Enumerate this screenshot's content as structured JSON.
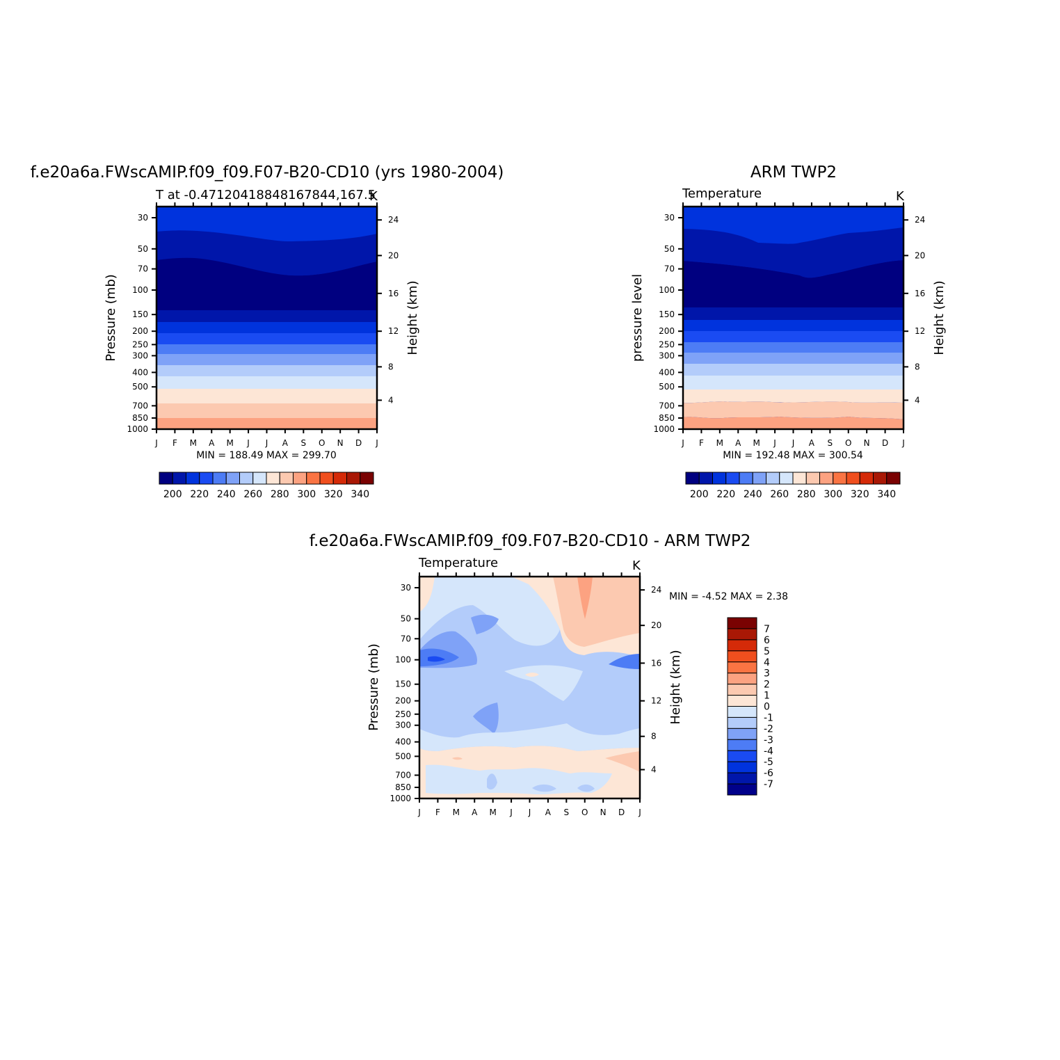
{
  "colors": {
    "temp_scale": [
      "#000080",
      "#0016aa",
      "#0033dd",
      "#1a4bf2",
      "#4d7cf5",
      "#7fa2f7",
      "#b3ccfa",
      "#d5e6fb",
      "#fde6d6",
      "#fcc9b0",
      "#fca281",
      "#fa7443",
      "#f04f1e",
      "#d52a08",
      "#a91805",
      "#7a0202"
    ],
    "diff_scale": [
      "#00008a",
      "#0016aa",
      "#0033dd",
      "#1a4bf2",
      "#4d7cf5",
      "#7fa2f7",
      "#b3ccfa",
      "#d5e6fb",
      "#fde6d6",
      "#fcc9b0",
      "#fca281",
      "#fa7443",
      "#f04f1e",
      "#d52a08",
      "#a91805",
      "#7a0202"
    ]
  },
  "panels": [
    {
      "id": "model",
      "title": "f.e20a6a.FWscAMIP.f09_f09.F07-B20-CD10 (yrs 1980-2004)",
      "subtitle_left": "T at -0.47120418848167844,167.5",
      "subtitle_right": "K",
      "ylabel_left": "Pressure (mb)",
      "ylabel_right": "Height (km)",
      "minmax": "MIN =  188.49 MAX =  299.70",
      "colorbar_labels": [
        "200",
        "220",
        "240",
        "260",
        "280",
        "300",
        "320",
        "340"
      ]
    },
    {
      "id": "obs",
      "title": "ARM TWP2",
      "subtitle_left": "Temperature",
      "subtitle_right": "K",
      "ylabel_left": "pressure level",
      "ylabel_right": "Height (km)",
      "minmax": "MIN =  192.48 MAX =  300.54",
      "colorbar_labels": [
        "200",
        "220",
        "240",
        "260",
        "280",
        "300",
        "320",
        "340"
      ]
    },
    {
      "id": "diff",
      "title": "f.e20a6a.FWscAMIP.f09_f09.F07-B20-CD10 - ARM TWP2",
      "subtitle_left": "Temperature",
      "subtitle_right": "K",
      "ylabel_left": "Pressure (mb)",
      "ylabel_right": "Height (km)",
      "minmax": "MIN =   -4.52 MAX =    2.38",
      "colorbar_labels": [
        "7",
        "6",
        "5",
        "4",
        "3",
        "2",
        "1",
        "0",
        "-1",
        "-2",
        "-3",
        "-4",
        "-5",
        "-6",
        "-7"
      ]
    }
  ],
  "chart_data": [
    {
      "type": "heatmap",
      "title": "f.e20a6a.FWscAMIP.f09_f09.F07-B20-CD10 (yrs 1980-2004)",
      "xlabel": "",
      "ylabel": "Pressure (mb)",
      "x_ticks": [
        "J",
        "F",
        "M",
        "A",
        "M",
        "J",
        "J",
        "A",
        "S",
        "O",
        "N",
        "D",
        "J"
      ],
      "y_ticks_left": [
        "30",
        "50",
        "70",
        "100",
        "150",
        "200",
        "250",
        "300",
        "400",
        "500",
        "700",
        "850",
        "1000"
      ],
      "y_ticks_right": [
        "24",
        "20",
        "16",
        "12",
        "8",
        "4"
      ],
      "contour_levels": [
        195,
        200,
        205,
        210,
        215,
        220,
        225,
        230,
        235,
        240,
        245,
        250,
        255,
        260,
        265,
        270,
        275,
        280,
        285,
        290,
        295,
        300
      ],
      "min": 188.49,
      "max": 299.7
    },
    {
      "type": "heatmap",
      "title": "ARM TWP2",
      "xlabel": "",
      "ylabel": "pressure level",
      "x_ticks": [
        "J",
        "F",
        "M",
        "A",
        "M",
        "J",
        "J",
        "A",
        "S",
        "O",
        "N",
        "D",
        "J"
      ],
      "y_ticks_left": [
        "30",
        "50",
        "70",
        "100",
        "150",
        "200",
        "250",
        "300",
        "400",
        "500",
        "700",
        "850",
        "1000"
      ],
      "y_ticks_right": [
        "24",
        "20",
        "16",
        "12",
        "8",
        "4"
      ],
      "min": 192.48,
      "max": 300.54
    },
    {
      "type": "heatmap",
      "title": "f.e20a6a.FWscAMIP.f09_f09.F07-B20-CD10 - ARM TWP2",
      "xlabel": "",
      "ylabel": "Pressure (mb)",
      "x_ticks": [
        "J",
        "F",
        "M",
        "A",
        "M",
        "J",
        "J",
        "A",
        "S",
        "O",
        "N",
        "D",
        "J"
      ],
      "y_ticks_left": [
        "30",
        "50",
        "70",
        "100",
        "150",
        "200",
        "250",
        "300",
        "400",
        "500",
        "700",
        "850",
        "1000"
      ],
      "y_ticks_right": [
        "24",
        "20",
        "16",
        "12",
        "8",
        "4"
      ],
      "contour_levels": [
        -7,
        -6,
        -5,
        -4,
        -3,
        -2,
        -1,
        0,
        1,
        2,
        3,
        4,
        5,
        6,
        7
      ],
      "min": -4.52,
      "max": 2.38
    }
  ]
}
